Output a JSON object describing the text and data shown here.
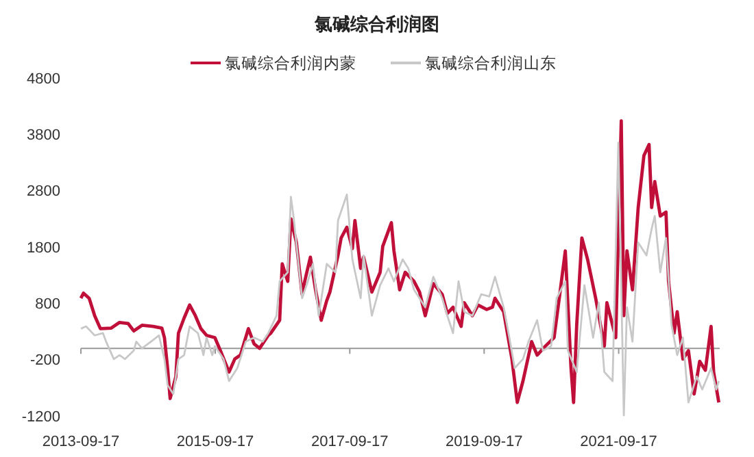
{
  "chart_data": {
    "type": "line",
    "title": "氯碱综合利润图",
    "legend": "top",
    "ylim": [
      -1200,
      4800
    ],
    "yticks": [
      -1200,
      -200,
      800,
      1800,
      2800,
      3800,
      4800
    ],
    "xlim": [
      "2013-09-17",
      "2023-03-20"
    ],
    "xticks": [
      "2013-09-17",
      "2015-09-17",
      "2017-09-17",
      "2019-09-17",
      "2021-09-17"
    ],
    "series": [
      {
        "name": "氯碱综合利润内蒙",
        "color": "#c0103a",
        "x": [
          "2013-09-17",
          "2013-10-01",
          "2013-11-01",
          "2013-12-01",
          "2014-01-01",
          "2014-03-01",
          "2014-04-15",
          "2014-06-01",
          "2014-07-01",
          "2014-08-15",
          "2014-10-15",
          "2014-12-01",
          "2014-12-15",
          "2015-01-01",
          "2015-01-15",
          "2015-02-15",
          "2015-03-01",
          "2015-04-01",
          "2015-05-01",
          "2015-06-01",
          "2015-07-01",
          "2015-08-01",
          "2015-09-15",
          "2015-10-15",
          "2015-12-01",
          "2016-01-01",
          "2016-02-01",
          "2016-03-15",
          "2016-04-15",
          "2016-05-15",
          "2016-07-01",
          "2016-07-15",
          "2016-09-01",
          "2016-09-15",
          "2016-10-15",
          "2016-11-01",
          "2016-12-01",
          "2017-01-01",
          "2017-01-15",
          "2017-02-15",
          "2017-03-15",
          "2017-04-15",
          "2017-05-15",
          "2017-06-01",
          "2017-07-15",
          "2017-08-01",
          "2017-09-01",
          "2017-10-01",
          "2017-10-15",
          "2017-11-15",
          "2017-12-01",
          "2018-01-15",
          "2018-03-01",
          "2018-03-15",
          "2018-05-01",
          "2018-05-15",
          "2018-06-15",
          "2018-07-15",
          "2018-09-01",
          "2018-10-01",
          "2018-11-01",
          "2018-12-15",
          "2019-02-01",
          "2019-03-01",
          "2019-04-01",
          "2019-05-15",
          "2019-06-01",
          "2019-07-15",
          "2019-08-15",
          "2019-10-01",
          "2019-11-01",
          "2019-11-15",
          "2020-01-01",
          "2020-02-15",
          "2020-03-15",
          "2020-04-15",
          "2020-06-01",
          "2020-07-01",
          "2020-08-15",
          "2020-10-01",
          "2020-11-01",
          "2020-12-01",
          "2021-01-01",
          "2021-01-15",
          "2021-02-01",
          "2021-03-01",
          "2021-04-01",
          "2021-05-15",
          "2021-07-01",
          "2021-07-15",
          "2021-09-01",
          "2021-10-01",
          "2021-10-15",
          "2021-11-01",
          "2021-12-01",
          "2022-01-01",
          "2022-02-01",
          "2022-03-01",
          "2022-03-15",
          "2022-04-01",
          "2022-05-01",
          "2022-06-01",
          "2022-06-15",
          "2022-07-15",
          "2022-08-01",
          "2022-09-01",
          "2022-10-01",
          "2022-11-01",
          "2022-12-01",
          "2023-01-01",
          "2023-02-01",
          "2023-02-15",
          "2023-03-15"
        ],
        "values": [
          890,
          980,
          890,
          580,
          350,
          360,
          460,
          440,
          310,
          410,
          390,
          360,
          190,
          -350,
          -890,
          -500,
          270,
          540,
          770,
          580,
          350,
          230,
          190,
          -40,
          -420,
          -190,
          -120,
          350,
          80,
          0,
          230,
          270,
          500,
          1500,
          1190,
          2300,
          1880,
          960,
          1190,
          1620,
          1040,
          500,
          850,
          1000,
          1650,
          1960,
          2150,
          1770,
          2270,
          1420,
          1620,
          1000,
          1350,
          1810,
          2230,
          1730,
          1040,
          1350,
          1190,
          1000,
          580,
          1150,
          960,
          620,
          730,
          390,
          810,
          580,
          770,
          690,
          730,
          890,
          650,
          -190,
          -960,
          -580,
          120,
          -120,
          40,
          190,
          960,
          1730,
          -350,
          -960,
          420,
          1960,
          1580,
          890,
          40,
          810,
          190,
          4040,
          580,
          1730,
          1040,
          2500,
          3420,
          3620,
          2500,
          2960,
          2350,
          2420,
          1190,
          270,
          650,
          -190,
          -40,
          -810,
          -230,
          -390,
          390,
          -420,
          -960
        ]
      },
      {
        "name": "氯碱综合利润山东",
        "color": "#c8c8c8",
        "x": [
          "2013-09-17",
          "2013-10-15",
          "2013-12-01",
          "2014-01-15",
          "2014-02-01",
          "2014-03-15",
          "2014-04-15",
          "2014-05-15",
          "2014-07-01",
          "2014-07-15",
          "2014-08-15",
          "2014-10-15",
          "2014-11-15",
          "2014-12-15",
          "2015-01-01",
          "2015-02-01",
          "2015-03-01",
          "2015-04-01",
          "2015-05-01",
          "2015-06-15",
          "2015-07-15",
          "2015-08-01",
          "2015-09-01",
          "2015-09-15",
          "2015-11-01",
          "2015-12-01",
          "2016-01-15",
          "2016-03-01",
          "2016-04-15",
          "2016-06-01",
          "2016-07-01",
          "2016-08-15",
          "2016-09-01",
          "2016-10-15",
          "2016-11-01",
          "2016-11-15",
          "2017-01-01",
          "2017-02-01",
          "2017-03-01",
          "2017-04-01",
          "2017-05-15",
          "2017-07-01",
          "2017-07-15",
          "2017-09-01",
          "2017-10-01",
          "2017-11-15",
          "2017-12-01",
          "2018-01-15",
          "2018-03-01",
          "2018-04-15",
          "2018-05-15",
          "2018-07-01",
          "2018-08-01",
          "2018-09-01",
          "2018-11-01",
          "2018-12-15",
          "2019-02-01",
          "2019-03-01",
          "2019-04-01",
          "2019-05-01",
          "2019-06-01",
          "2019-07-15",
          "2019-09-01",
          "2019-10-15",
          "2019-11-15",
          "2020-01-01",
          "2020-02-01",
          "2020-03-01",
          "2020-04-15",
          "2020-05-15",
          "2020-07-01",
          "2020-08-01",
          "2020-09-15",
          "2020-10-15",
          "2020-12-01",
          "2020-12-15",
          "2021-02-01",
          "2021-03-15",
          "2021-05-01",
          "2021-06-01",
          "2021-07-01",
          "2021-08-15",
          "2021-09-15",
          "2021-10-15",
          "2021-11-01",
          "2021-12-01",
          "2022-01-01",
          "2022-02-15",
          "2022-03-15",
          "2022-04-01",
          "2022-05-01",
          "2022-06-01",
          "2022-07-01",
          "2022-08-01",
          "2022-09-01",
          "2022-10-01",
          "2022-11-15",
          "2022-12-15",
          "2023-02-01",
          "2023-03-01",
          "2023-03-15"
        ],
        "values": [
          350,
          390,
          230,
          270,
          120,
          -190,
          -120,
          -190,
          -40,
          120,
          0,
          150,
          230,
          -190,
          -650,
          -810,
          -190,
          -120,
          390,
          270,
          -120,
          190,
          -120,
          40,
          -190,
          -580,
          -350,
          120,
          190,
          120,
          270,
          580,
          1190,
          1350,
          2690,
          2350,
          890,
          1190,
          1500,
          580,
          1500,
          1350,
          2270,
          2730,
          1580,
          890,
          1650,
          580,
          1120,
          1420,
          1190,
          1580,
          1420,
          1040,
          730,
          1270,
          890,
          580,
          270,
          1190,
          650,
          580,
          960,
          920,
          1270,
          730,
          190,
          -350,
          -190,
          120,
          500,
          -40,
          40,
          890,
          1190,
          -40,
          -420,
          1120,
          190,
          810,
          -420,
          -580,
          3650,
          -1190,
          730,
          120,
          1880,
          1650,
          2120,
          2350,
          1350,
          1960,
          420,
          -120,
          190,
          -960,
          -500,
          -730,
          -350,
          -730,
          -580
        ]
      }
    ]
  }
}
